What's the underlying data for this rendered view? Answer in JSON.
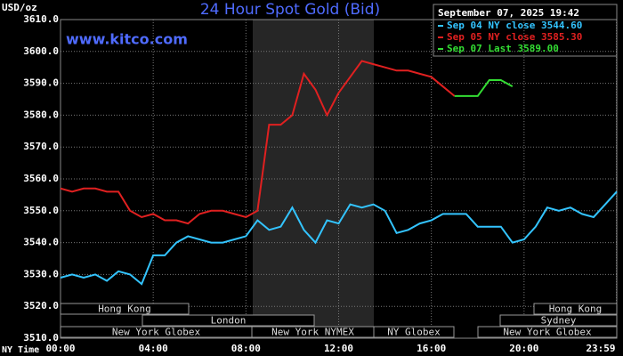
{
  "chart_data": {
    "type": "line",
    "title": "24 Hour Spot Gold (Bid)",
    "watermark": "www.kitco.com",
    "timestamp": "September 07, 2025 19:42",
    "y_label": "USD/oz",
    "x_label": "NY Time",
    "x": [
      0,
      0.5,
      1,
      1.5,
      2,
      2.5,
      3,
      3.5,
      4,
      4.5,
      5,
      5.5,
      6,
      6.5,
      7,
      7.5,
      8,
      8.5,
      9,
      9.5,
      10,
      10.5,
      11,
      11.5,
      12,
      12.5,
      13,
      13.5,
      14,
      14.5,
      15,
      15.5,
      16,
      16.5,
      17,
      17.5,
      18,
      18.5,
      19,
      19.5,
      20,
      20.5,
      21,
      21.5,
      22,
      22.5,
      23,
      23.5,
      24
    ],
    "series": [
      {
        "name": "Sep 04 NY close 3544.60",
        "color": "#33c4ff",
        "values": [
          3529,
          3530,
          3529,
          3530,
          3528,
          3531,
          3530,
          3527,
          3536,
          3536,
          3540,
          3542,
          3541,
          3540,
          3540,
          3541,
          3542,
          3547,
          3544,
          3545,
          3551,
          3544,
          3540,
          3547,
          3546,
          3552,
          3551,
          3552,
          3550,
          3543,
          3544,
          3546,
          3547,
          3549,
          3549,
          3549,
          3545,
          3545,
          3545,
          3540,
          3541,
          3545,
          3551,
          3550,
          3551,
          3549,
          3548,
          3552,
          3556
        ]
      },
      {
        "name": "Sep 05 NY close 3585.30",
        "color": "#e02020",
        "values": [
          3557,
          3556,
          3557,
          3557,
          3556,
          3556,
          3550,
          3548,
          3549,
          3547,
          3547,
          3546,
          3549,
          3550,
          3550,
          3549,
          3548,
          3550,
          3577,
          3577,
          3580,
          3593,
          3588,
          3580,
          3587,
          3592,
          3597,
          3596,
          3595,
          3594,
          3594,
          3593,
          3592,
          3589,
          3586,
          null,
          null,
          null,
          null,
          null,
          null,
          null,
          null,
          null,
          null,
          null,
          null,
          null,
          null
        ]
      },
      {
        "name": "Sep 07 Last 3589.00",
        "color": "#33dd33",
        "values": [
          null,
          null,
          null,
          null,
          null,
          null,
          null,
          null,
          null,
          null,
          null,
          null,
          null,
          null,
          null,
          null,
          null,
          null,
          null,
          null,
          null,
          null,
          null,
          null,
          null,
          null,
          null,
          null,
          null,
          null,
          null,
          null,
          null,
          null,
          3586,
          3586,
          3586,
          3591,
          3591,
          3589,
          null,
          null,
          null,
          null,
          null,
          null,
          null,
          null,
          null
        ]
      }
    ],
    "xlim": [
      0,
      24
    ],
    "xticks": [
      {
        "value": 0,
        "label": "00:00"
      },
      {
        "value": 4,
        "label": "04:00"
      },
      {
        "value": 8,
        "label": "08:00"
      },
      {
        "value": 12,
        "label": "12:00"
      },
      {
        "value": 16,
        "label": "16:00"
      },
      {
        "value": 20,
        "label": "20:00"
      },
      {
        "value": 23.983,
        "label": "23:59"
      }
    ],
    "ylim": [
      3510,
      3610
    ],
    "yticks": [
      {
        "value": 3510,
        "label": "3510.0"
      },
      {
        "value": 3520,
        "label": "3520.0"
      },
      {
        "value": 3530,
        "label": "3530.0"
      },
      {
        "value": 3540,
        "label": "3540.0"
      },
      {
        "value": 3550,
        "label": "3550.0"
      },
      {
        "value": 3560,
        "label": "3560.0"
      },
      {
        "value": 3570,
        "label": "3570.0"
      },
      {
        "value": 3580,
        "label": "3580.0"
      },
      {
        "value": 3590,
        "label": "3590.0"
      },
      {
        "value": 3600,
        "label": "3600.0"
      },
      {
        "value": 3610,
        "label": "3610.0"
      }
    ],
    "grid": true,
    "sessions": [
      "Hong Kong",
      "London",
      "New York Globex",
      "New York NYMEX",
      "NY Globex",
      "Sydney",
      "Hong Kong",
      "New York Globex"
    ]
  }
}
